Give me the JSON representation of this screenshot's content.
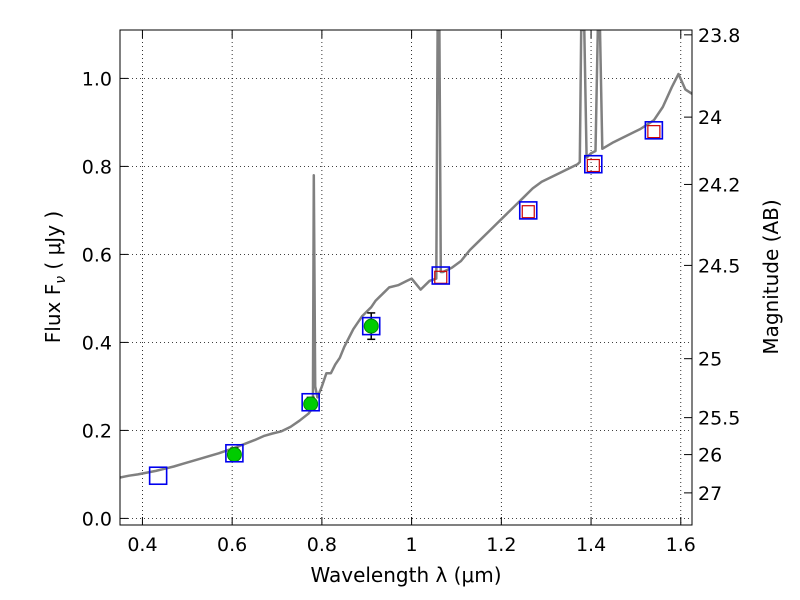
{
  "chart_data": {
    "type": "scatter",
    "xlabel": "Wavelength  λ (μm)",
    "ylabel_left": "Flux  F",
    "ylabel_left_sub": "ν",
    "ylabel_left_unit": "  ( μJy )",
    "ylabel_right": "Magnitude (AB)",
    "xlim": [
      0.35,
      1.625
    ],
    "ylim": [
      -0.015,
      1.11
    ],
    "grid": true,
    "x_ticks": [
      0.4,
      0.6,
      0.8,
      1.0,
      1.2,
      1.4,
      1.6
    ],
    "x_tick_labels": [
      "0.4",
      "0.6",
      "0.8",
      "1",
      "1.2",
      "1.4",
      "1.6"
    ],
    "y_ticks": [
      0.0,
      0.2,
      0.4,
      0.6,
      0.8,
      1.0
    ],
    "y_tick_labels": [
      "0.0",
      "0.2",
      "0.4",
      "0.6",
      "0.8",
      "1.0"
    ],
    "mag_ticks": [
      {
        "label": "23.8",
        "flux": 1.099
      },
      {
        "label": "24",
        "flux": 0.912
      },
      {
        "label": "24.2",
        "flux": 0.759
      },
      {
        "label": "24.5",
        "flux": 0.575
      },
      {
        "label": "25",
        "flux": 0.363
      },
      {
        "label": "25.5",
        "flux": 0.229
      },
      {
        "label": "26",
        "flux": 0.145
      },
      {
        "label": "27",
        "flux": 0.058
      }
    ],
    "model_spectrum": {
      "color": "#808080",
      "points": [
        [
          0.35,
          0.093
        ],
        [
          0.37,
          0.097
        ],
        [
          0.39,
          0.1
        ],
        [
          0.41,
          0.104
        ],
        [
          0.43,
          0.108
        ],
        [
          0.45,
          0.113
        ],
        [
          0.47,
          0.118
        ],
        [
          0.49,
          0.124
        ],
        [
          0.51,
          0.13
        ],
        [
          0.53,
          0.136
        ],
        [
          0.55,
          0.142
        ],
        [
          0.57,
          0.148
        ],
        [
          0.59,
          0.155
        ],
        [
          0.61,
          0.162
        ],
        [
          0.63,
          0.17
        ],
        [
          0.65,
          0.178
        ],
        [
          0.67,
          0.187
        ],
        [
          0.69,
          0.193
        ],
        [
          0.71,
          0.198
        ],
        [
          0.73,
          0.208
        ],
        [
          0.75,
          0.222
        ],
        [
          0.77,
          0.238
        ],
        [
          0.775,
          0.245
        ],
        [
          0.78,
          0.25
        ],
        [
          0.782,
          0.78
        ],
        [
          0.785,
          0.3
        ],
        [
          0.79,
          0.275
        ],
        [
          0.8,
          0.3
        ],
        [
          0.81,
          0.33
        ],
        [
          0.82,
          0.33
        ],
        [
          0.83,
          0.35
        ],
        [
          0.84,
          0.365
        ],
        [
          0.85,
          0.39
        ],
        [
          0.86,
          0.41
        ],
        [
          0.87,
          0.43
        ],
        [
          0.88,
          0.445
        ],
        [
          0.89,
          0.46
        ],
        [
          0.9,
          0.47
        ],
        [
          0.91,
          0.48
        ],
        [
          0.92,
          0.495
        ],
        [
          0.93,
          0.505
        ],
        [
          0.94,
          0.515
        ],
        [
          0.95,
          0.525
        ],
        [
          0.97,
          0.53
        ],
        [
          0.99,
          0.54
        ],
        [
          1.0,
          0.545
        ],
        [
          1.02,
          0.52
        ],
        [
          1.04,
          0.54
        ],
        [
          1.055,
          0.545
        ],
        [
          1.058,
          1.11
        ],
        [
          1.062,
          1.11
        ],
        [
          1.065,
          0.56
        ],
        [
          1.07,
          0.56
        ],
        [
          1.09,
          0.57
        ],
        [
          1.11,
          0.585
        ],
        [
          1.13,
          0.61
        ],
        [
          1.15,
          0.63
        ],
        [
          1.17,
          0.65
        ],
        [
          1.19,
          0.67
        ],
        [
          1.21,
          0.69
        ],
        [
          1.23,
          0.71
        ],
        [
          1.25,
          0.73
        ],
        [
          1.27,
          0.75
        ],
        [
          1.29,
          0.765
        ],
        [
          1.31,
          0.775
        ],
        [
          1.33,
          0.785
        ],
        [
          1.35,
          0.795
        ],
        [
          1.37,
          0.805
        ],
        [
          1.375,
          0.81
        ],
        [
          1.378,
          1.11
        ],
        [
          1.385,
          1.11
        ],
        [
          1.39,
          0.82
        ],
        [
          1.4,
          0.83
        ],
        [
          1.41,
          0.835
        ],
        [
          1.415,
          1.11
        ],
        [
          1.42,
          1.11
        ],
        [
          1.425,
          0.84
        ],
        [
          1.45,
          0.855
        ],
        [
          1.48,
          0.87
        ],
        [
          1.51,
          0.885
        ],
        [
          1.54,
          0.905
        ],
        [
          1.56,
          0.935
        ],
        [
          1.58,
          0.98
        ],
        [
          1.595,
          1.01
        ],
        [
          1.61,
          0.975
        ],
        [
          1.625,
          0.965
        ]
      ]
    },
    "observed": {
      "color": "#00cc00",
      "points": [
        {
          "x": 0.605,
          "y": 0.145,
          "yerr": 0.015
        },
        {
          "x": 0.775,
          "y": 0.26,
          "yerr": 0.015
        },
        {
          "x": 0.91,
          "y": 0.437,
          "yerr": 0.03
        }
      ]
    },
    "model_photometry": {
      "color": "#0000ee",
      "points": [
        {
          "x": 0.435,
          "y": 0.097
        },
        {
          "x": 0.605,
          "y": 0.148
        },
        {
          "x": 0.775,
          "y": 0.264
        },
        {
          "x": 0.91,
          "y": 0.437
        },
        {
          "x": 1.065,
          "y": 0.552
        },
        {
          "x": 1.26,
          "y": 0.7
        },
        {
          "x": 1.405,
          "y": 0.805
        },
        {
          "x": 1.54,
          "y": 0.882
        }
      ]
    },
    "upper_limits": {
      "color": "#cc0000",
      "points": [
        {
          "x": 1.065,
          "y": 0.548
        },
        {
          "x": 1.26,
          "y": 0.697
        },
        {
          "x": 1.405,
          "y": 0.802
        },
        {
          "x": 1.54,
          "y": 0.879
        }
      ]
    }
  }
}
